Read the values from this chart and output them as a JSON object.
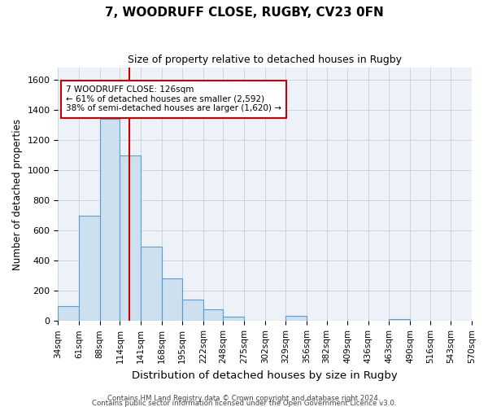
{
  "title": "7, WOODRUFF CLOSE, RUGBY, CV23 0FN",
  "subtitle": "Size of property relative to detached houses in Rugby",
  "xlabel": "Distribution of detached houses by size in Rugby",
  "ylabel": "Number of detached properties",
  "footer_line1": "Contains HM Land Registry data © Crown copyright and database right 2024.",
  "footer_line2": "Contains public sector information licensed under the Open Government Licence v3.0.",
  "bar_edges": [
    34,
    61,
    88,
    114,
    141,
    168,
    195,
    222,
    248,
    275,
    302,
    329,
    356,
    382,
    409,
    436,
    463,
    490,
    516,
    543,
    570
  ],
  "bar_heights": [
    100,
    700,
    1340,
    1100,
    495,
    285,
    140,
    75,
    30,
    0,
    0,
    35,
    0,
    0,
    0,
    0,
    15,
    0,
    0,
    0,
    0
  ],
  "bar_color": "#cce0f0",
  "bar_edge_color": "#5b9bd5",
  "vline_color": "#cc0000",
  "vline_x": 126,
  "annotation_line1": "7 WOODRUFF CLOSE: 126sqm",
  "annotation_line2": "← 61% of detached houses are smaller (2,592)",
  "annotation_line3": "38% of semi-detached houses are larger (1,620) →",
  "annotation_box_color": "#ffffff",
  "annotation_box_edge_color": "#cc0000",
  "ylim": [
    0,
    1680
  ],
  "yticks": [
    0,
    200,
    400,
    600,
    800,
    1000,
    1200,
    1400,
    1600
  ],
  "tick_labels": [
    "34sqm",
    "61sqm",
    "88sqm",
    "114sqm",
    "141sqm",
    "168sqm",
    "195sqm",
    "222sqm",
    "248sqm",
    "275sqm",
    "302sqm",
    "329sqm",
    "356sqm",
    "382sqm",
    "409sqm",
    "436sqm",
    "463sqm",
    "490sqm",
    "516sqm",
    "543sqm",
    "570sqm"
  ],
  "background_color": "#ffffff",
  "plot_bg_color": "#edf2f9",
  "grid_color": "#c8d0dc"
}
